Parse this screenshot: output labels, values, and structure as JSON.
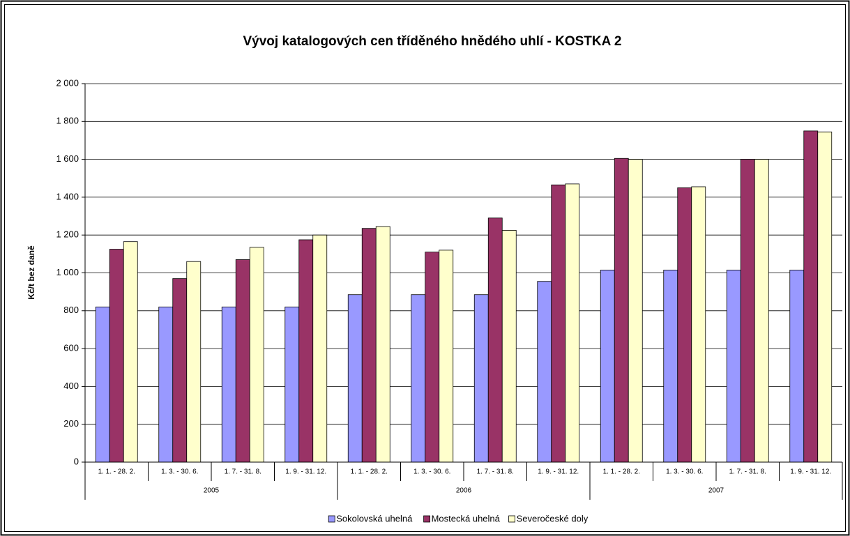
{
  "chart_data": {
    "type": "bar",
    "title": "Vývoj katalogových cen tříděného hnědého uhlí - KOSTKA 2",
    "y_label": "Kč/t bez daně",
    "groups": [
      {
        "name": "2005",
        "categories": [
          "1. 1. - 28. 2.",
          "1. 3. - 30. 6.",
          "1. 7. - 31. 8.",
          "1. 9. - 31. 12."
        ]
      },
      {
        "name": "2006",
        "categories": [
          "1. 1. - 28. 2.",
          "1. 3. - 30. 6.",
          "1. 7. - 31. 8.",
          "1. 9. - 31. 12."
        ]
      },
      {
        "name": "2007",
        "categories": [
          "1. 1. - 28. 2.",
          "1. 3. - 30. 6.",
          "1. 7. - 31. 8.",
          "1. 9. - 31. 12."
        ]
      }
    ],
    "series": [
      {
        "name": "Sokolovská uhelná",
        "color": "#9999ff",
        "values": [
          820,
          820,
          820,
          820,
          885,
          885,
          885,
          955,
          1015,
          1015,
          1015,
          1015
        ]
      },
      {
        "name": "Mostecká uhelná",
        "color": "#993366",
        "values": [
          1125,
          970,
          1070,
          1175,
          1235,
          1110,
          1290,
          1465,
          1605,
          1450,
          1600,
          1750
        ]
      },
      {
        "name": "Severočeské doly",
        "color": "#ffffcc",
        "values": [
          1165,
          1060,
          1135,
          1200,
          1245,
          1120,
          1225,
          1470,
          1600,
          1455,
          1600,
          1745
        ]
      }
    ],
    "ylim": [
      0,
      2000
    ],
    "yticks": [
      0,
      200,
      400,
      600,
      800,
      {
        "value": 1000,
        "label": "1 000"
      },
      {
        "value": 1200,
        "label": "1 200"
      },
      {
        "value": 1400,
        "label": "1 400"
      },
      {
        "value": 1600,
        "label": "1 600"
      },
      {
        "value": 1800,
        "label": "1 800"
      },
      {
        "value": 2000,
        "label": "2 000"
      }
    ],
    "grid": true,
    "legend": "bottom"
  }
}
